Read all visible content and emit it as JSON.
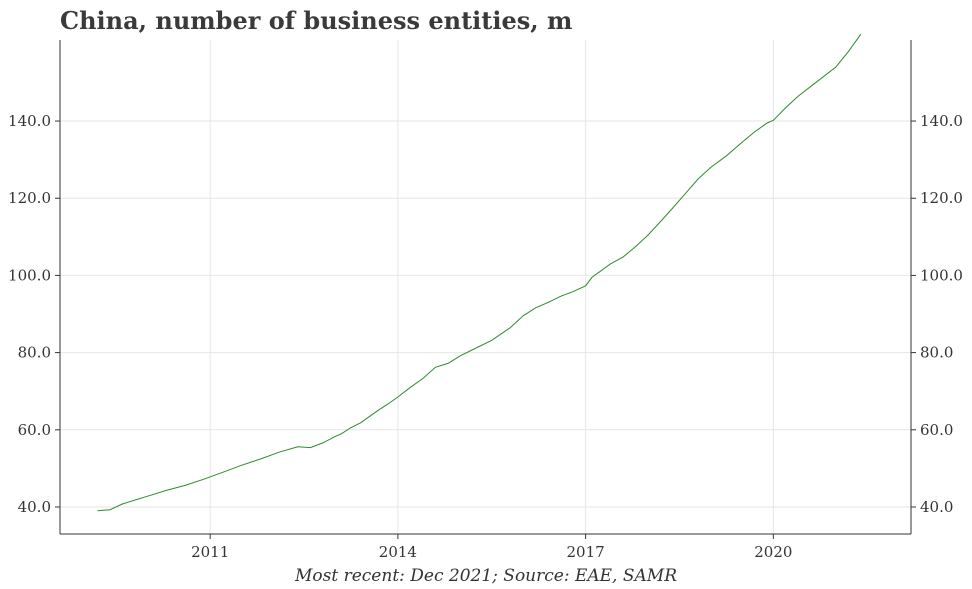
{
  "chart_data": {
    "type": "line",
    "title": "China, number of business entities, m",
    "source": "Most recent: Dec 2021; Source: EAE, SAMR",
    "y_ticks": [
      "40.0",
      "60.0",
      "80.0",
      "100.0",
      "120.0",
      "140.0"
    ],
    "x_ticks": [
      "2011",
      "2014",
      "2017",
      "2020"
    ],
    "xlim": [
      2008.6,
      2022.2
    ],
    "ylim": [
      33,
      161
    ],
    "grid": true,
    "series": [
      {
        "color": "#2e8b2e",
        "x": [
          2009.2,
          2009.4,
          2009.6,
          2009.8,
          2010.0,
          2010.3,
          2010.6,
          2010.9,
          2011.2,
          2011.5,
          2011.8,
          2012.1,
          2012.4,
          2012.6,
          2012.8,
          2013.0,
          2013.1,
          2013.25,
          2013.4,
          2013.55,
          2013.7,
          2013.85,
          2014.0,
          2014.2,
          2014.4,
          2014.6,
          2014.8,
          2015.0,
          2015.25,
          2015.5,
          2015.8,
          2016.0,
          2016.2,
          2016.4,
          2016.6,
          2016.8,
          2017.0,
          2017.1,
          2017.4,
          2017.6,
          2017.8,
          2018.0,
          2018.2,
          2018.4,
          2018.6,
          2018.8,
          2019.0,
          2019.25,
          2019.5,
          2019.7,
          2019.9,
          2020.0,
          2020.2,
          2020.4,
          2020.6,
          2020.8,
          2021.0,
          2021.2,
          2021.4
        ],
        "values": [
          39.0,
          39.3,
          40.8,
          41.8,
          42.8,
          44.3,
          45.6,
          47.2,
          49.0,
          50.8,
          52.4,
          54.2,
          55.6,
          55.4,
          56.6,
          58.3,
          59.0,
          60.6,
          61.8,
          63.5,
          65.2,
          66.8,
          68.5,
          71.0,
          73.3,
          76.2,
          77.2,
          79.2,
          81.2,
          83.2,
          86.5,
          89.5,
          91.6,
          93.0,
          94.6,
          95.8,
          97.3,
          99.5,
          103.0,
          104.8,
          107.5,
          110.5,
          114.0,
          117.6,
          121.3,
          125.0,
          128.0,
          131.0,
          134.5,
          137.2,
          139.5,
          140.2,
          143.5,
          146.5,
          149.0,
          151.5,
          154.0,
          158.0,
          162.5
        ]
      }
    ]
  }
}
